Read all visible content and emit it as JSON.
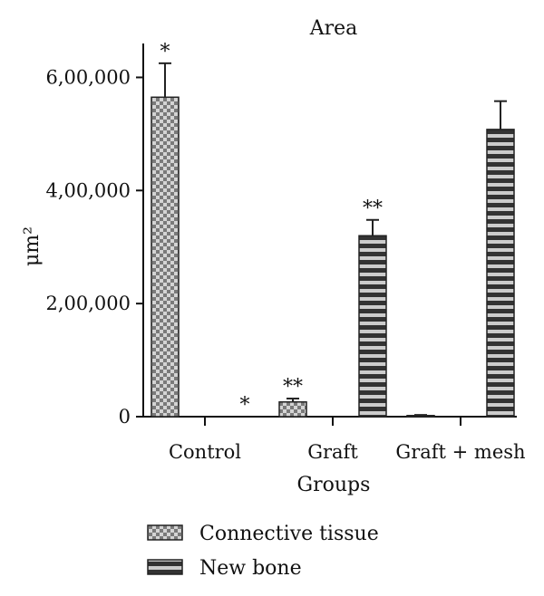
{
  "chart_data": {
    "type": "bar",
    "title": "Area",
    "xlabel": "Groups",
    "ylabel": "μm²",
    "ylim": [
      0,
      660000
    ],
    "yticks": [
      0,
      200000,
      400000,
      600000
    ],
    "ytick_labels": [
      "0",
      "2,00,000",
      "4,00,000",
      "6,00,000"
    ],
    "categories": [
      "Control",
      "Graft",
      "Graft + mesh"
    ],
    "series": [
      {
        "name": "Connective tissue",
        "pattern": "checker",
        "values": [
          565000,
          26000,
          2000
        ],
        "errors": [
          60000,
          6000,
          1000
        ]
      },
      {
        "name": "New bone",
        "pattern": "stripes",
        "values": [
          0,
          320000,
          508000
        ],
        "errors": [
          0,
          28000,
          50000
        ]
      }
    ],
    "annotations": [
      {
        "series": 0,
        "category": 0,
        "text": "*"
      },
      {
        "series": 1,
        "category": 0,
        "text": "*"
      },
      {
        "series": 0,
        "category": 1,
        "text": "**"
      },
      {
        "series": 1,
        "category": 1,
        "text": "**"
      }
    ],
    "legend_position": "bottom-left",
    "grid": false,
    "colors": {
      "dark": "#333333",
      "light": "#cccccc",
      "axis": "#111111"
    }
  }
}
